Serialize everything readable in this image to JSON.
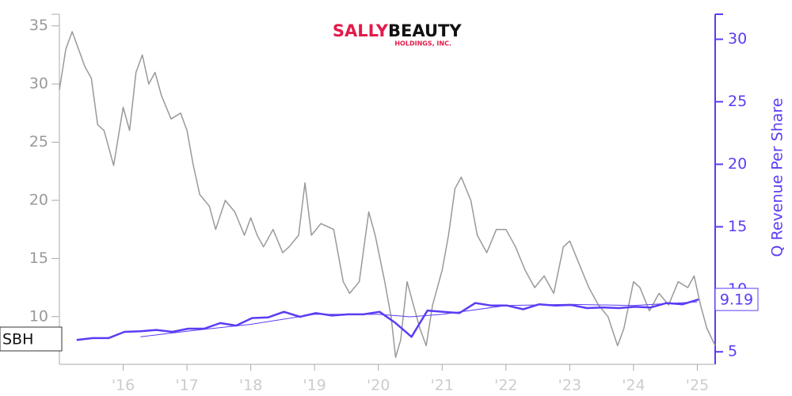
{
  "chart_data": {
    "type": "line",
    "logo": {
      "brand_1": "SALLY",
      "brand_2": "BEAUTY",
      "subtitle": "HOLDINGS, INC."
    },
    "ticker_label": "SBH",
    "y2_label": "Q Revenue Per Share",
    "xlim": [
      2015.0,
      2025.28
    ],
    "xticks": [
      {
        "value": 2016,
        "label": "'16"
      },
      {
        "value": 2017,
        "label": "'17"
      },
      {
        "value": 2018,
        "label": "'18"
      },
      {
        "value": 2019,
        "label": "'19"
      },
      {
        "value": 2020,
        "label": "'20"
      },
      {
        "value": 2021,
        "label": "'21"
      },
      {
        "value": 2022,
        "label": "'22"
      },
      {
        "value": 2023,
        "label": "'23"
      },
      {
        "value": 2024,
        "label": "'24"
      },
      {
        "value": 2025,
        "label": "'25"
      }
    ],
    "ylim": [
      5.9,
      36
    ],
    "yticks": [
      10,
      15,
      20,
      25,
      30,
      35
    ],
    "y2lim": [
      4,
      32
    ],
    "y2ticks": [
      5,
      10,
      15,
      20,
      25,
      30
    ],
    "series": [
      {
        "color": "#999999",
        "width": 1.5,
        "axis": "y",
        "x": [
          2015.0,
          2015.1,
          2015.2,
          2015.3,
          2015.4,
          2015.5,
          2015.6,
          2015.7,
          2015.85,
          2016.0,
          2016.1,
          2016.2,
          2016.3,
          2016.4,
          2016.5,
          2016.6,
          2016.75,
          2016.9,
          2017.0,
          2017.1,
          2017.2,
          2017.35,
          2017.45,
          2017.6,
          2017.75,
          2017.9,
          2018.0,
          2018.1,
          2018.2,
          2018.35,
          2018.5,
          2018.6,
          2018.75,
          2018.85,
          2018.95,
          2019.1,
          2019.3,
          2019.45,
          2019.55,
          2019.7,
          2019.85,
          2019.95,
          2020.1,
          2020.2,
          2020.27,
          2020.35,
          2020.45,
          2020.55,
          2020.65,
          2020.75,
          2020.85,
          2021.0,
          2021.1,
          2021.2,
          2021.3,
          2021.45,
          2021.55,
          2021.7,
          2021.85,
          2022.0,
          2022.15,
          2022.3,
          2022.45,
          2022.6,
          2022.75,
          2022.9,
          2023.0,
          2023.15,
          2023.3,
          2023.45,
          2023.6,
          2023.75,
          2023.85,
          2024.0,
          2024.1,
          2024.25,
          2024.4,
          2024.55,
          2024.7,
          2024.85,
          2024.95,
          2025.05,
          2025.15,
          2025.28
        ],
        "values": [
          29.5,
          33,
          34.5,
          33,
          31.5,
          30.5,
          26.5,
          26,
          23,
          28,
          26,
          31,
          32.5,
          30,
          31,
          29,
          27,
          27.5,
          26,
          23,
          20.5,
          19.5,
          17.5,
          20,
          19,
          17,
          18.5,
          17,
          16,
          17.5,
          15.5,
          16,
          17,
          21.5,
          17,
          18,
          17.5,
          13,
          12,
          13,
          19,
          17,
          13,
          10,
          6.5,
          8,
          13,
          11,
          9,
          7.5,
          11,
          14,
          17,
          21,
          22,
          20,
          17,
          15.5,
          17.5,
          17.5,
          16,
          14,
          12.5,
          13.5,
          12,
          16,
          16.5,
          14.5,
          12.5,
          11,
          10,
          7.5,
          9,
          13,
          12.5,
          10.5,
          12,
          11,
          13,
          12.5,
          13.5,
          11,
          9,
          7.5
        ]
      },
      {
        "color": "#5b3cf5",
        "width": 1,
        "axis": "y2",
        "x": [
          2016.27,
          2017.0,
          2018.0,
          2019.0,
          2020.0,
          2020.5,
          2021.0,
          2022.0,
          2023.0,
          2024.0,
          2025.0
        ],
        "values": [
          6.2,
          6.65,
          7.2,
          8.0,
          8.0,
          7.8,
          8.0,
          8.7,
          8.8,
          8.7,
          9.0
        ]
      },
      {
        "color": "#5b3cf5",
        "width": 2.5,
        "axis": "y2",
        "x": [
          2015.27,
          2015.52,
          2015.77,
          2016.02,
          2016.27,
          2016.52,
          2016.77,
          2017.02,
          2017.27,
          2017.52,
          2017.77,
          2018.02,
          2018.27,
          2018.52,
          2018.77,
          2019.02,
          2019.27,
          2019.52,
          2019.77,
          2020.02,
          2020.27,
          2020.52,
          2020.77,
          2021.02,
          2021.27,
          2021.52,
          2021.77,
          2022.02,
          2022.27,
          2022.52,
          2022.77,
          2023.02,
          2023.27,
          2023.52,
          2023.77,
          2024.02,
          2024.27,
          2024.52,
          2024.77,
          2025.02
        ],
        "values": [
          5.95,
          6.1,
          6.1,
          6.6,
          6.65,
          6.75,
          6.6,
          6.85,
          6.85,
          7.3,
          7.1,
          7.7,
          7.75,
          8.2,
          7.8,
          8.1,
          7.9,
          8.0,
          8.0,
          8.2,
          7.3,
          6.2,
          8.3,
          8.2,
          8.1,
          8.9,
          8.7,
          8.7,
          8.4,
          8.8,
          8.7,
          8.75,
          8.5,
          8.55,
          8.5,
          8.6,
          8.55,
          8.9,
          8.8,
          9.19
        ]
      }
    ]
  }
}
